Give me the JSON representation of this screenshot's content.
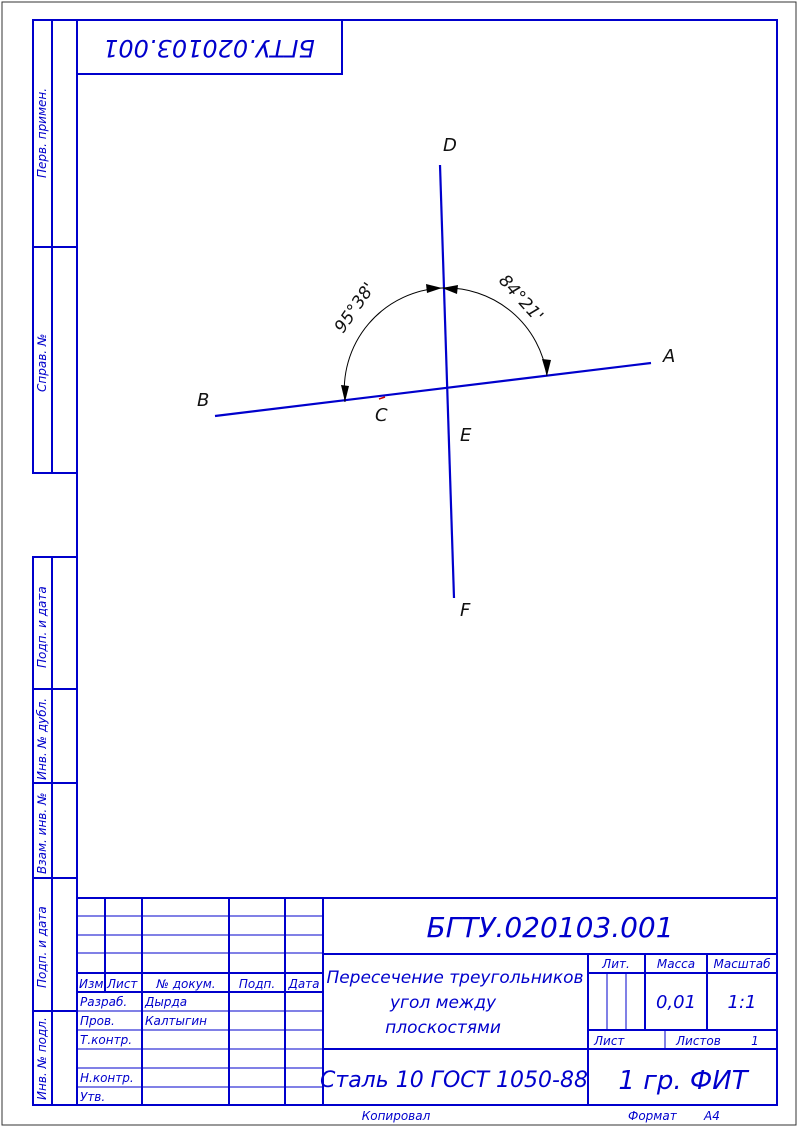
{
  "designation": "БГТУ.020103.001",
  "designation_mirrored": "БГТУ.020103.001",
  "colors": {
    "frame": "#0000cc",
    "line": "#0000cc",
    "arc": "#000000",
    "point_c": "#cc0000"
  },
  "drawing": {
    "points": {
      "A": "A",
      "B": "B",
      "C": "C",
      "D": "D",
      "E": "E",
      "F": "F"
    },
    "angle_left": "95°38'",
    "angle_right": "84°21'"
  },
  "side_columns": {
    "perv_primen": "Перв. примен.",
    "sprav_no": "Справ. №",
    "podp_data_1": "Подп. и дата",
    "inv_dubl": "Инв. № дубл.",
    "vzam_inv": "Взам. инв. №",
    "podp_data_2": "Подп. и дата",
    "inv_podl": "Инв. № подл."
  },
  "title_block": {
    "headers": {
      "izm": "Изм.",
      "list": "Лист",
      "dokum": "№ докум.",
      "podp": "Подп.",
      "data": "Дата"
    },
    "rows": {
      "razrab": "Разраб.",
      "razrab_name": "Дырда",
      "prov": "Пров.",
      "prov_name": "Калтыгин",
      "tkontr": "Т.контр.",
      "nkontr": "Н.контр.",
      "utv": "Утв."
    },
    "title_line1": "Пересечение треугольников",
    "title_line2": "угол между",
    "title_line3": "плоскостями",
    "lit_label": "Лит.",
    "massa_label": "Масса",
    "masshtab_label": "Масштаб",
    "massa_value": "0,01",
    "masshtab_value": "1:1",
    "list_label": "Лист",
    "listov_label": "Листов",
    "listov_value": "1",
    "material": "Сталь 10  ГОСТ 1050-88",
    "organization": "1 гр. ФИТ"
  },
  "footer": {
    "kopiroval": "Копировал",
    "format_label": "Формат",
    "format_value": "А4"
  }
}
